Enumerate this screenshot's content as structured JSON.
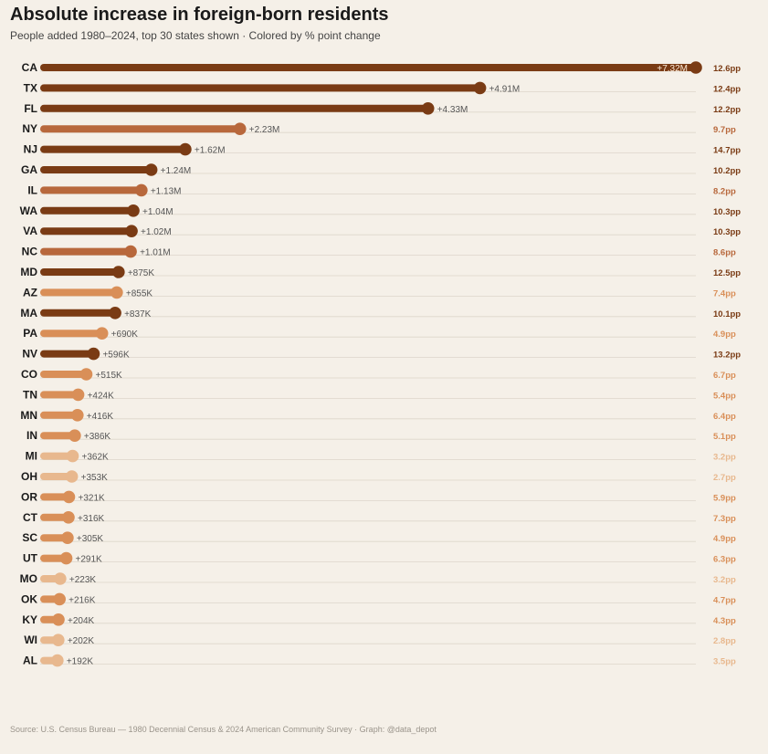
{
  "header": {
    "title": "Absolute increase in foreign-born residents",
    "subtitle": "People added 1980–2024, top 30 states shown · Colored by % point change"
  },
  "footer": {
    "source": "Source: U.S. Census Bureau — 1980 Decennial Census & 2024 American Community Survey  ·  Graph: @data_depot"
  },
  "colors": {
    "background": "#f5f0e8",
    "grid": "#ddd6ca",
    "dark": "#7a3b14",
    "medium": "#b8683c",
    "light": "#d98f58",
    "pale": "#e8b88e"
  },
  "chart_data": {
    "type": "bar",
    "title": "Absolute increase in foreign-born residents",
    "subtitle": "People added 1980–2024, top 30 states shown · Colored by % point change",
    "xlim": [
      0,
      7320000
    ],
    "grid": false,
    "categories": [
      "CA",
      "TX",
      "FL",
      "NY",
      "NJ",
      "GA",
      "IL",
      "WA",
      "VA",
      "NC",
      "MD",
      "AZ",
      "MA",
      "PA",
      "NV",
      "CO",
      "TN",
      "MN",
      "IN",
      "MI",
      "OH",
      "OR",
      "CT",
      "SC",
      "UT",
      "MO",
      "OK",
      "KY",
      "WI",
      "AL"
    ],
    "values": [
      7320000,
      4910000,
      4330000,
      2230000,
      1620000,
      1240000,
      1130000,
      1040000,
      1020000,
      1010000,
      875000,
      855000,
      837000,
      690000,
      596000,
      515000,
      424000,
      416000,
      386000,
      362000,
      353000,
      321000,
      316000,
      305000,
      291000,
      223000,
      216000,
      204000,
      202000,
      192000
    ],
    "value_labels": [
      "+7.32M",
      "+4.91M",
      "+4.33M",
      "+2.23M",
      "+1.62M",
      "+1.24M",
      "+1.13M",
      "+1.04M",
      "+1.02M",
      "+1.01M",
      "+875K",
      "+855K",
      "+837K",
      "+690K",
      "+596K",
      "+515K",
      "+424K",
      "+416K",
      "+386K",
      "+362K",
      "+353K",
      "+321K",
      "+316K",
      "+305K",
      "+291K",
      "+223K",
      "+216K",
      "+204K",
      "+202K",
      "+192K"
    ],
    "pp_change": [
      12.6,
      12.4,
      12.2,
      9.7,
      14.7,
      10.2,
      8.2,
      10.3,
      10.3,
      8.6,
      12.5,
      7.4,
      10.1,
      4.9,
      13.2,
      6.7,
      5.4,
      6.4,
      5.1,
      3.2,
      2.7,
      5.9,
      7.3,
      4.9,
      6.3,
      3.2,
      4.7,
      4.3,
      2.8,
      3.5
    ],
    "pp_labels": [
      "12.6pp",
      "12.4pp",
      "12.2pp",
      "9.7pp",
      "14.7pp",
      "10.2pp",
      "8.2pp",
      "10.3pp",
      "10.3pp",
      "8.6pp",
      "12.5pp",
      "7.4pp",
      "10.1pp",
      "4.9pp",
      "13.2pp",
      "6.7pp",
      "5.4pp",
      "6.4pp",
      "5.1pp",
      "3.2pp",
      "2.7pp",
      "5.9pp",
      "7.3pp",
      "4.9pp",
      "6.3pp",
      "3.2pp",
      "4.7pp",
      "4.3pp",
      "2.8pp",
      "3.5pp"
    ]
  }
}
